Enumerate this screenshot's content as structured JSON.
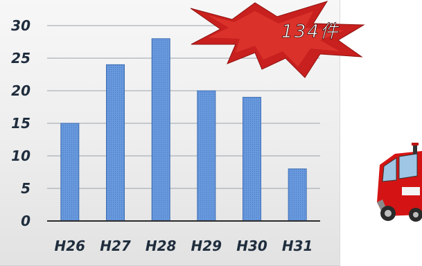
{
  "chart_data": {
    "type": "bar",
    "categories": [
      "H26",
      "H27",
      "H28",
      "H29",
      "H30",
      "H31"
    ],
    "values": [
      15,
      24,
      28,
      20,
      19,
      8
    ],
    "yticks": [
      0,
      5,
      10,
      15,
      20,
      25,
      30
    ],
    "ylim": [
      0,
      30
    ],
    "title": "",
    "xlabel": "",
    "ylabel": "",
    "grid": true,
    "annotation": "134件",
    "colors": {
      "bar": "#5b8fd6",
      "bar_edge": "#3e6eb5",
      "burst": "#c8201e",
      "grid": "#9aa3ad"
    }
  },
  "decoration": {
    "icon": "fire-truck-icon",
    "color": "#d41414"
  }
}
